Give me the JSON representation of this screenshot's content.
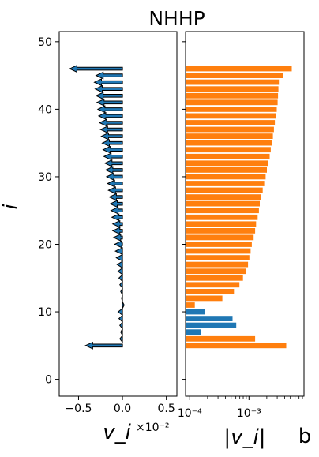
{
  "chart_data": [
    {
      "type": "arrow",
      "title": "NHHP",
      "xlabel": "v_i",
      "ylabel": "i",
      "x_offset_label": "×10⁻²",
      "x_multiplier": 0.01,
      "xlim": [
        -0.72,
        0.62
      ],
      "ylim": [
        -2.5,
        51.5
      ],
      "x_ticks": [
        -0.5,
        0.0,
        0.5
      ],
      "x_tick_labels": [
        "−0.5",
        "0.0",
        "0.5"
      ],
      "y_ticks": [
        0,
        10,
        20,
        30,
        40,
        50
      ],
      "y_tick_labels": [
        "0",
        "10",
        "20",
        "30",
        "40",
        "50"
      ],
      "arrow_fill": "#1f77b4",
      "arrow_edge": "#000000",
      "i": [
        5,
        6,
        7,
        8,
        9,
        10,
        11,
        12,
        13,
        14,
        15,
        16,
        17,
        18,
        19,
        20,
        21,
        22,
        23,
        24,
        25,
        26,
        27,
        28,
        29,
        30,
        31,
        32,
        33,
        34,
        35,
        36,
        37,
        38,
        39,
        40,
        41,
        42,
        43,
        44,
        45,
        46
      ],
      "v": [
        -0.42,
        -0.03,
        -0.02,
        -0.03,
        -0.04,
        -0.05,
        0.02,
        -0.01,
        -0.02,
        -0.03,
        -0.04,
        -0.05,
        -0.06,
        -0.07,
        -0.08,
        -0.09,
        -0.1,
        -0.11,
        -0.11,
        -0.12,
        -0.13,
        -0.14,
        -0.15,
        -0.16,
        -0.17,
        -0.18,
        -0.19,
        -0.2,
        -0.21,
        -0.22,
        -0.23,
        -0.24,
        -0.25,
        -0.26,
        -0.27,
        -0.28,
        -0.29,
        -0.3,
        -0.31,
        -0.32,
        -0.3,
        -0.6
      ]
    },
    {
      "type": "bar",
      "orientation": "horizontal",
      "xlabel": "|v_i|",
      "xscale": "log",
      "xlim": [
        8.5e-05,
        0.0085
      ],
      "ylim": [
        -2.5,
        51.5
      ],
      "x_ticks": [
        0.0001,
        0.001
      ],
      "x_tick_labels": [
        "10⁻⁴",
        "10⁻³"
      ],
      "colors": {
        "negative": "#ff7f0e",
        "positive": "#1f77b4"
      },
      "i": [
        5,
        6,
        7,
        8,
        9,
        10,
        11,
        12,
        13,
        14,
        15,
        16,
        17,
        18,
        19,
        20,
        21,
        22,
        23,
        24,
        25,
        26,
        27,
        28,
        29,
        30,
        31,
        32,
        33,
        34,
        35,
        36,
        37,
        38,
        39,
        40,
        41,
        42,
        43,
        44,
        45,
        46
      ],
      "values": [
        0.0042,
        0.00125,
        0.00015,
        0.0006,
        0.00052,
        0.00018,
        0.00012,
        0.00035,
        0.00055,
        0.00068,
        0.00078,
        0.00088,
        0.00095,
        0.001,
        0.00105,
        0.0011,
        0.00118,
        0.00125,
        0.0013,
        0.00138,
        0.00145,
        0.0015,
        0.00158,
        0.00168,
        0.00178,
        0.00188,
        0.00198,
        0.0021,
        0.0022,
        0.0023,
        0.0024,
        0.0025,
        0.0026,
        0.0027,
        0.0028,
        0.0029,
        0.003,
        0.00305,
        0.0031,
        0.00315,
        0.0037,
        0.0052
      ],
      "signs": [
        "neg",
        "neg",
        "pos",
        "pos",
        "pos",
        "pos",
        "neg",
        "neg",
        "neg",
        "neg",
        "neg",
        "neg",
        "neg",
        "neg",
        "neg",
        "neg",
        "neg",
        "neg",
        "neg",
        "neg",
        "neg",
        "neg",
        "neg",
        "neg",
        "neg",
        "neg",
        "neg",
        "neg",
        "neg",
        "neg",
        "neg",
        "neg",
        "neg",
        "neg",
        "neg",
        "neg",
        "neg",
        "neg",
        "neg",
        "neg",
        "neg",
        "neg"
      ]
    }
  ],
  "panel_letter": "b"
}
